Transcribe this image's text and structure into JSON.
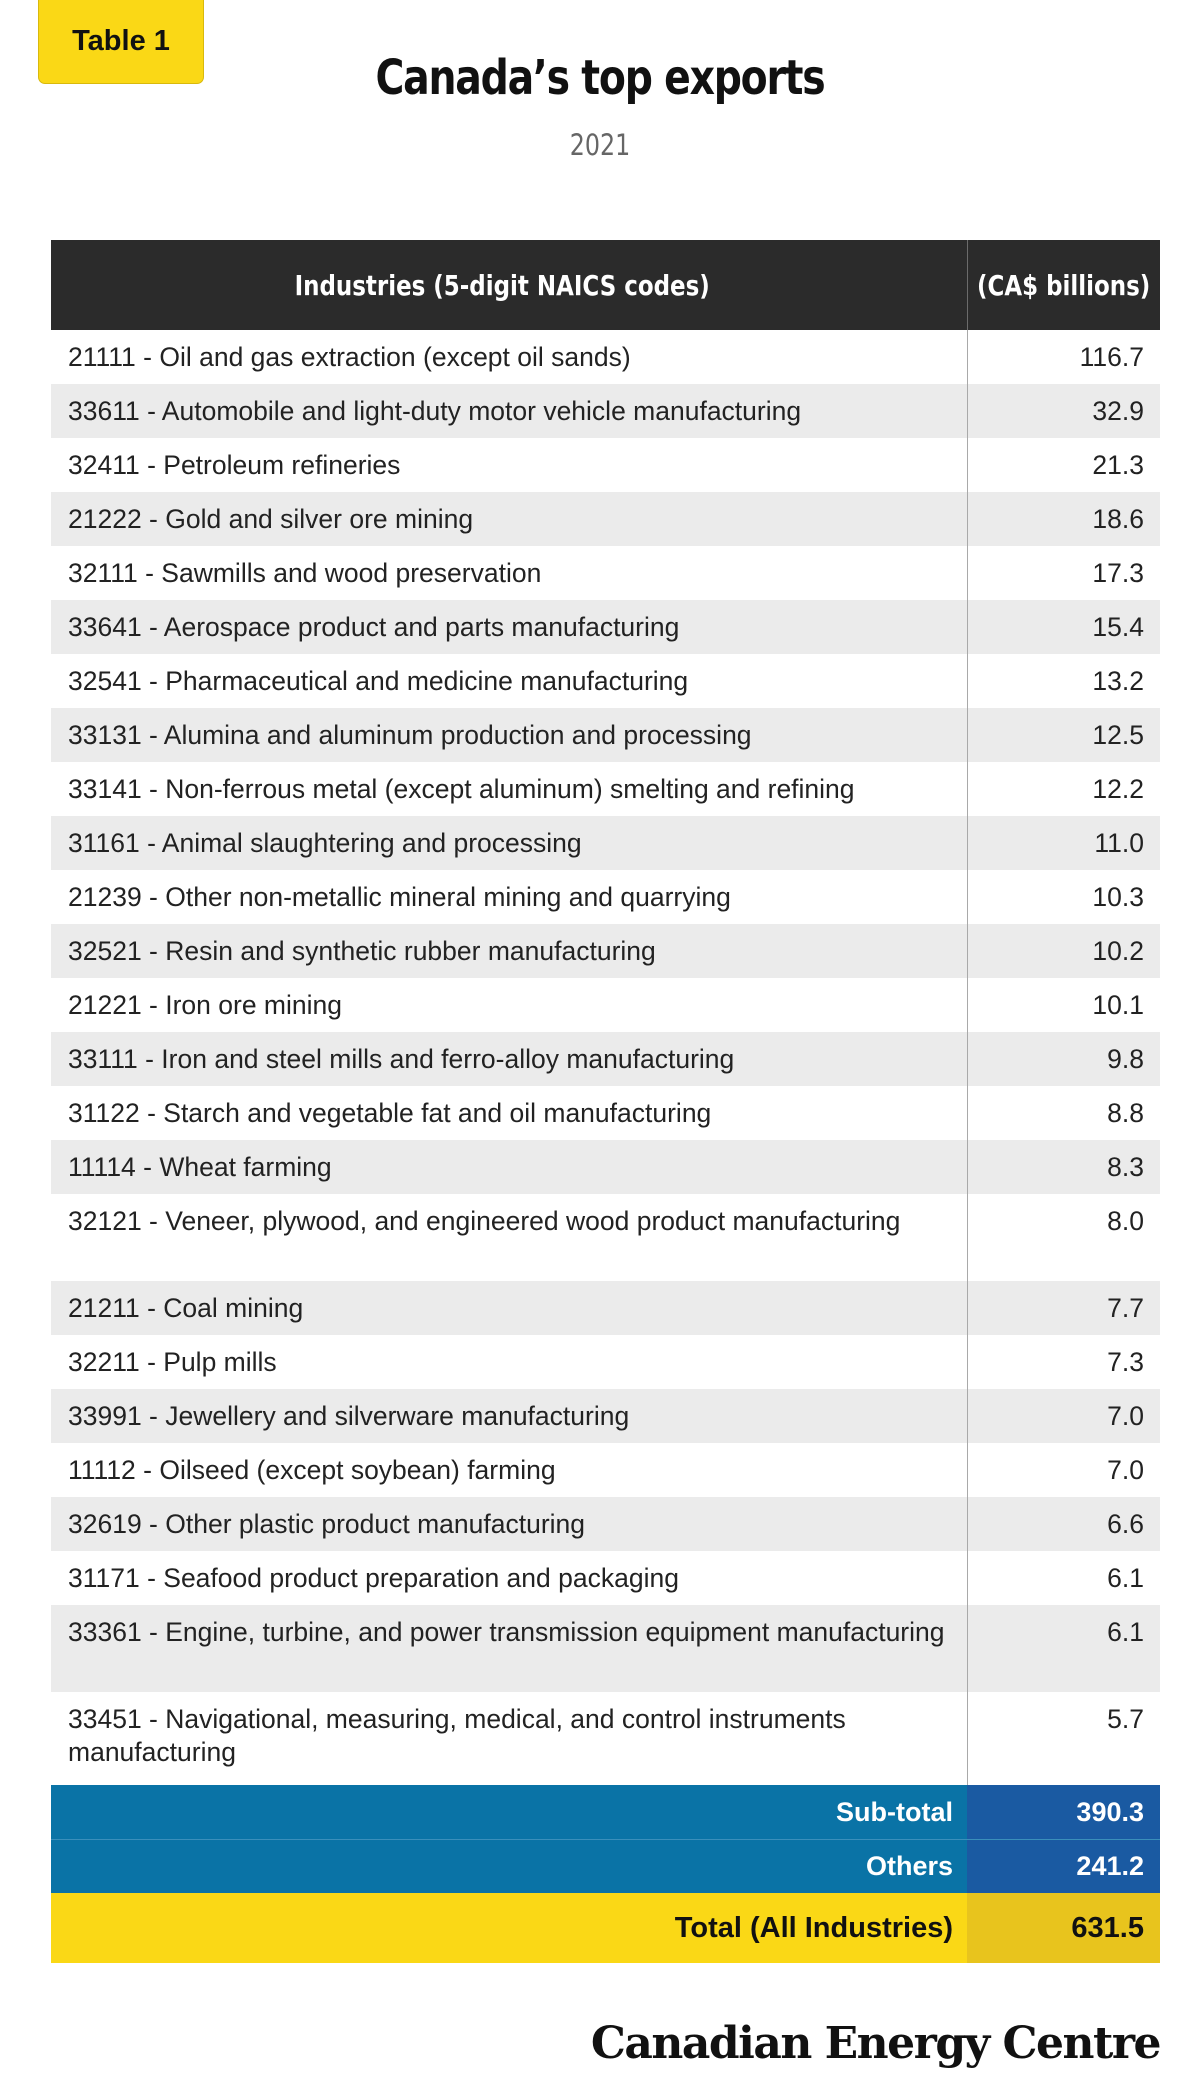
{
  "badge": "Table 1",
  "title": "Canada’s top exports",
  "subtitle": "2021",
  "chart_data": {
    "type": "table",
    "columns": [
      "Industries (5-digit NAICS codes)",
      "(CA$ billions)"
    ],
    "rows": [
      {
        "industry": "21111 - Oil and gas extraction (except oil sands)",
        "value": "116.7"
      },
      {
        "industry": "33611 - Automobile and light-duty motor vehicle manufacturing",
        "value": "32.9"
      },
      {
        "industry": "32411 - Petroleum refineries",
        "value": "21.3"
      },
      {
        "industry": "21222 - Gold and silver ore mining",
        "value": "18.6"
      },
      {
        "industry": "32111 - Sawmills and wood preservation",
        "value": "17.3"
      },
      {
        "industry": "33641 - Aerospace product and parts manufacturing",
        "value": "15.4"
      },
      {
        "industry": "32541 - Pharmaceutical and medicine manufacturing",
        "value": "13.2"
      },
      {
        "industry": "33131 - Alumina and aluminum production and processing",
        "value": "12.5"
      },
      {
        "industry": "33141 - Non-ferrous metal (except aluminum) smelting and refining",
        "value": "12.2"
      },
      {
        "industry": "31161 - Animal slaughtering and processing",
        "value": "11.0"
      },
      {
        "industry": "21239 - Other non-metallic mineral mining and quarrying",
        "value": "10.3"
      },
      {
        "industry": "32521 - Resin and synthetic rubber manufacturing",
        "value": "10.2"
      },
      {
        "industry": "21221 - Iron ore mining",
        "value": "10.1"
      },
      {
        "industry": "33111 - Iron and steel mills and ferro-alloy manufacturing",
        "value": "9.8"
      },
      {
        "industry": "31122 - Starch and vegetable fat and oil manufacturing",
        "value": "8.8"
      },
      {
        "industry": "11114 - Wheat farming",
        "value": "8.3"
      },
      {
        "industry": "32121 - Veneer, plywood, and engineered wood product manufacturing",
        "value": "8.0"
      },
      {
        "industry": "21211 - Coal mining",
        "value": "7.7"
      },
      {
        "industry": "32211 - Pulp mills",
        "value": "7.3"
      },
      {
        "industry": "33991 - Jewellery and silverware manufacturing",
        "value": "7.0"
      },
      {
        "industry": "11112 - Oilseed (except soybean) farming",
        "value": "7.0"
      },
      {
        "industry": "32619 - Other plastic product manufacturing",
        "value": "6.6"
      },
      {
        "industry": "31171 - Seafood product preparation and packaging",
        "value": "6.1"
      },
      {
        "industry": "33361 - Engine, turbine, and power transmission equipment manufacturing",
        "value": "6.1"
      },
      {
        "industry": "33451 - Navigational, measuring, medical, and control instruments manufacturing",
        "value": "5.7"
      }
    ],
    "subtotal": {
      "label": "Sub-total",
      "value": "390.3"
    },
    "others": {
      "label": "Others",
      "value": "241.2"
    },
    "total": {
      "label": "Total (All Industries)",
      "value": "631.5"
    }
  },
  "source": "Canadian Energy Centre",
  "colors": {
    "header": "#2b2b2b",
    "accent_yellow": "#fad816",
    "summary_blue": "#0a73a6",
    "summary_blue_dark": "#1a5aa2",
    "stripe": "#ebebeb"
  }
}
